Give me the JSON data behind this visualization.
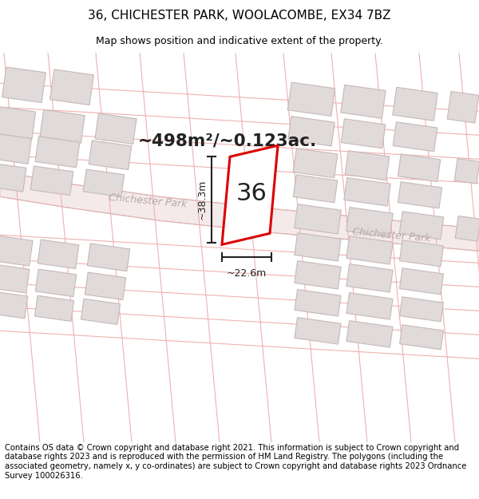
{
  "title": "36, CHICHESTER PARK, WOOLACOMBE, EX34 7BZ",
  "subtitle": "Map shows position and indicative extent of the property.",
  "area_text": "~498m²/~0.123ac.",
  "plot_number": "36",
  "width_label": "~22.6m",
  "height_label": "~38.3m",
  "road_label1": "Chichester Park",
  "road_label2": "Chichester Park",
  "footer": "Contains OS data © Crown copyright and database right 2021. This information is subject to Crown copyright and database rights 2023 and is reproduced with the permission of HM Land Registry. The polygons (including the associated geometry, namely x, y co-ordinates) are subject to Crown copyright and database rights 2023 Ordnance Survey 100026316.",
  "bg_color": "#ffffff",
  "map_bg_color": "#f9f8f8",
  "plot_fill": "#ffffff",
  "plot_edge": "#dd0000",
  "building_fill": "#e0dada",
  "building_edge": "#c8b8b8",
  "dim_color": "#222222",
  "road_text_color": "#b8a8a8",
  "area_text_color": "#222222",
  "plot_line_color": "#f0b0b0",
  "title_fontsize": 11,
  "subtitle_fontsize": 9,
  "footer_fontsize": 7.2
}
